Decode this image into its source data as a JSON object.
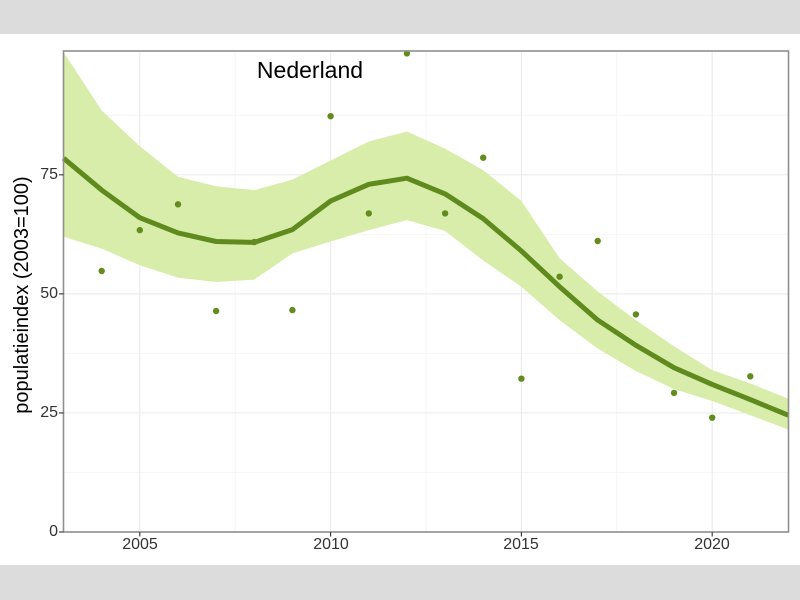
{
  "window": {
    "letterbox_color": "#dcdcdc"
  },
  "chart_data": {
    "type": "scatter",
    "title": "Nederland",
    "xlabel": "",
    "ylabel": "populatieindex (2003=100)",
    "xlim": [
      2003,
      2022
    ],
    "ylim": [
      0,
      101
    ],
    "x_ticks": [
      2005,
      2010,
      2015,
      2020
    ],
    "x_minor_gridlines": [
      2007.5,
      2012.5,
      2017.5
    ],
    "y_ticks": [
      0,
      25,
      50,
      75
    ],
    "y_minor_gridlines": [
      12.5,
      37.5,
      62.5,
      87.5
    ],
    "grid": true,
    "legend_position": "none",
    "points": {
      "x": [
        2004,
        2005,
        2006,
        2007,
        2008,
        2009,
        2010,
        2011,
        2012,
        2013,
        2014,
        2015,
        2016,
        2017,
        2018,
        2019,
        2020,
        2021
      ],
      "y": [
        54.8,
        63.4,
        68.8,
        46.4,
        60.9,
        46.6,
        87.3,
        66.9,
        100.5,
        66.9,
        78.6,
        32.2,
        53.6,
        61.1,
        45.7,
        29.2,
        24.0,
        32.7
      ]
    },
    "trend_line": {
      "x": [
        2003,
        2004,
        2005,
        2006,
        2007,
        2008,
        2009,
        2010,
        2011,
        2012,
        2013,
        2014,
        2015,
        2016,
        2017,
        2018,
        2019,
        2020,
        2021,
        2022
      ],
      "y": [
        78.5,
        71.8,
        66.0,
        62.8,
        61.0,
        60.8,
        63.5,
        69.5,
        73.0,
        74.3,
        71.0,
        65.8,
        59.0,
        51.5,
        44.5,
        39.2,
        34.5,
        31.0,
        27.8,
        24.5
      ]
    },
    "confidence_band": {
      "x": [
        2003,
        2004,
        2005,
        2006,
        2007,
        2008,
        2009,
        2010,
        2011,
        2012,
        2013,
        2014,
        2015,
        2016,
        2017,
        2018,
        2019,
        2020,
        2021,
        2022
      ],
      "upper": [
        100.8,
        88.5,
        81.0,
        74.6,
        72.6,
        71.8,
        74.0,
        78.0,
        82.0,
        84.1,
        80.5,
        76.0,
        69.5,
        57.5,
        50.5,
        44.5,
        39.0,
        34.0,
        31.2,
        28.0
      ],
      "lower": [
        62.0,
        59.5,
        56.0,
        53.4,
        52.5,
        53.0,
        58.5,
        61.0,
        63.4,
        65.5,
        63.2,
        57.0,
        51.5,
        44.5,
        38.5,
        33.8,
        30.0,
        27.5,
        24.5,
        21.5
      ]
    },
    "colors": {
      "trend_line": "#5f8a1e",
      "points": "#638c1f",
      "band_fill": "#d9edaa",
      "panel_border": "#8f8f8f",
      "grid_major": "#ececec",
      "grid_minor": "#f6f6f6",
      "tick_text": "#333333",
      "tick_mark": "#333333"
    }
  }
}
